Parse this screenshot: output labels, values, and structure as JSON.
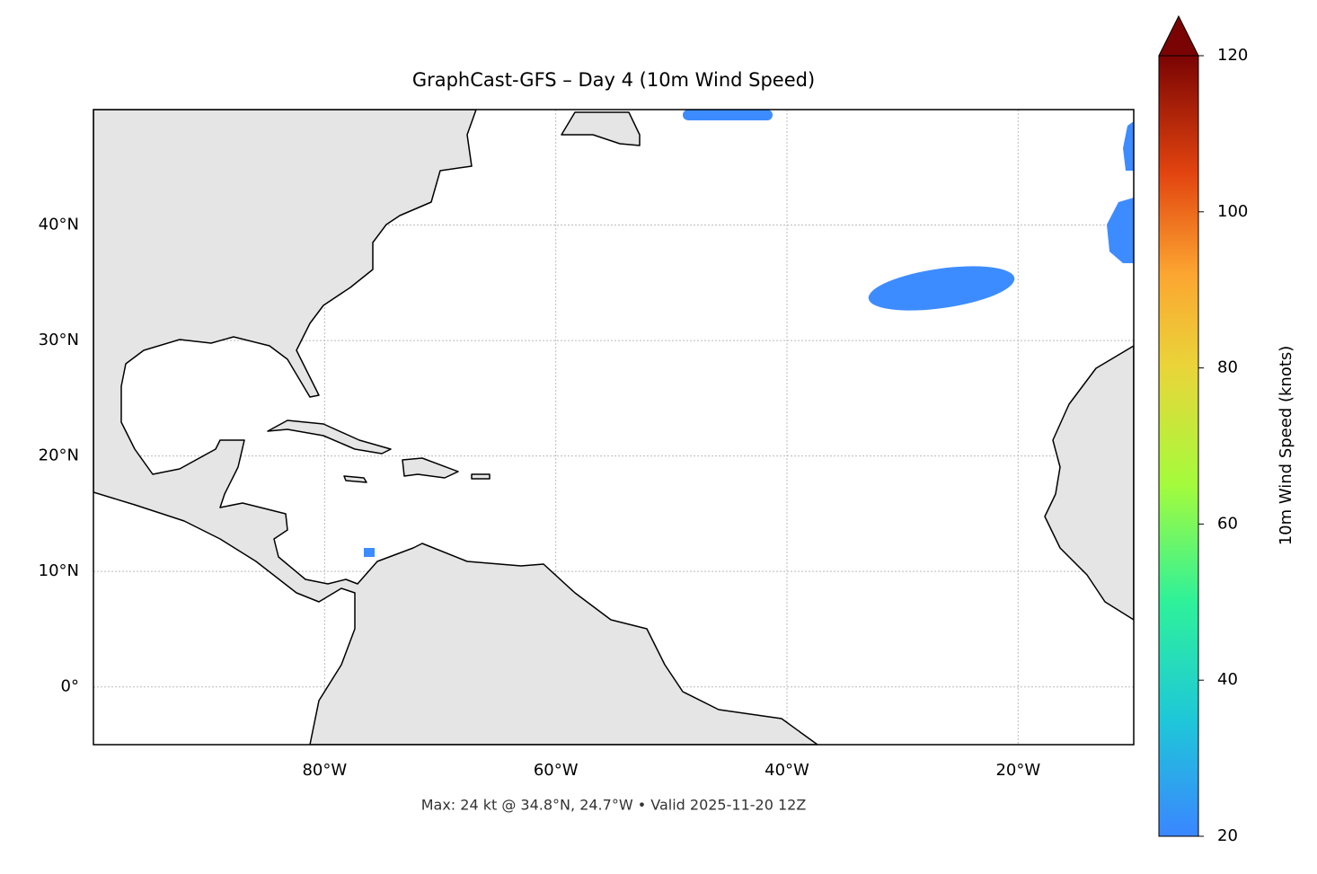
{
  "chart_data": {
    "type": "map",
    "title": "GraphCast-GFS – Day 4 (10m Wind Speed)",
    "xlim": [
      -100,
      -10
    ],
    "ylim": [
      -5,
      50
    ],
    "xticks": [
      {
        "value": -80,
        "label": "80°W"
      },
      {
        "value": -60,
        "label": "60°W"
      },
      {
        "value": -40,
        "label": "40°W"
      },
      {
        "value": -20,
        "label": "20°W"
      }
    ],
    "yticks": [
      {
        "value": 0,
        "label": "0°"
      },
      {
        "value": 10,
        "label": "10°N"
      },
      {
        "value": 20,
        "label": "20°N"
      },
      {
        "value": 30,
        "label": "30°N"
      },
      {
        "value": 40,
        "label": "40°N"
      }
    ],
    "grid": true,
    "footer": "Max: 24 kt @ 34.8°N, 24.7°W • Valid 2025-11-20 12Z",
    "colorbar": {
      "label": "10m Wind Speed (knots)",
      "lim": [
        20,
        120
      ],
      "ticks": [
        20,
        40,
        60,
        80,
        100,
        120
      ]
    }
  }
}
